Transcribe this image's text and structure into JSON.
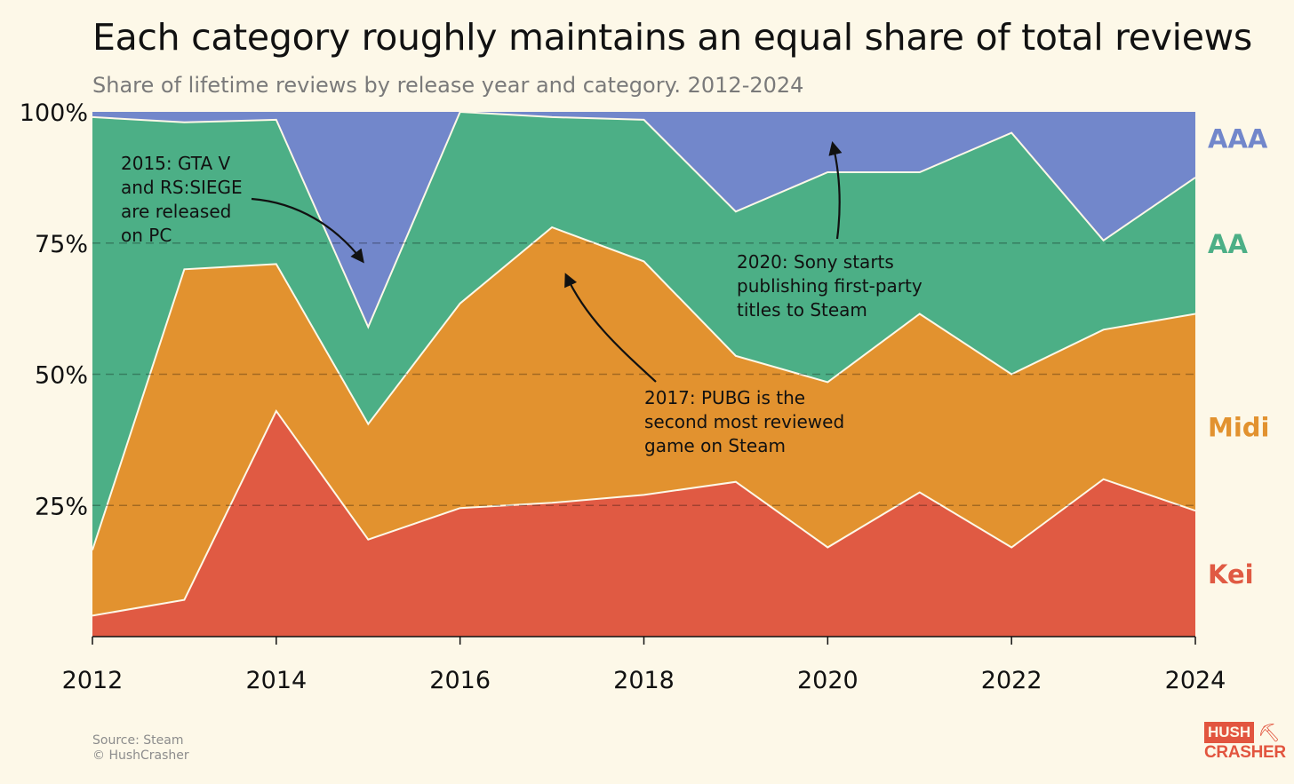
{
  "header": {
    "title": "Each category roughly maintains an equal share of total reviews",
    "subtitle": "Share of lifetime reviews by release year and category. 2012-2024"
  },
  "footer": {
    "source": "Source: Steam",
    "copyright": "© HushCrasher"
  },
  "logo": {
    "line1": "HUSH",
    "line2": "CRASHER",
    "icon": "pickaxe-icon"
  },
  "chart_data": {
    "type": "area",
    "stacked": true,
    "x": [
      2012,
      2013,
      2014,
      2015,
      2016,
      2017,
      2018,
      2019,
      2020,
      2021,
      2022,
      2023,
      2024
    ],
    "x_ticks": [
      "2012",
      "2014",
      "2016",
      "2018",
      "2020",
      "2022",
      "2024"
    ],
    "y_ticks": [
      {
        "value": 25,
        "label": "25%"
      },
      {
        "value": 50,
        "label": "50%"
      },
      {
        "value": 75,
        "label": "75%"
      },
      {
        "value": 100,
        "label": "100%"
      }
    ],
    "ylim": [
      0,
      100
    ],
    "grid": "dashed lines at 25%, 50%, 75%",
    "series": [
      {
        "name": "Kei",
        "color": "#e05a43",
        "values": [
          4,
          7,
          43,
          18.5,
          24.5,
          25.5,
          27,
          29.5,
          17,
          27.5,
          17,
          30,
          24
        ]
      },
      {
        "name": "Midi",
        "color": "#e2922f",
        "values": [
          12.5,
          63,
          28,
          22,
          39,
          52.5,
          44.5,
          24,
          31.5,
          34,
          33,
          28.5,
          37.5
        ]
      },
      {
        "name": "AA",
        "color": "#4caf86",
        "values": [
          82.5,
          28,
          27.5,
          18.5,
          36.5,
          21,
          27,
          27.5,
          40,
          27,
          46,
          17,
          26
        ]
      },
      {
        "name": "AAA",
        "color": "#7287cb",
        "values": [
          1,
          2,
          1.5,
          41,
          0,
          1,
          1.5,
          19,
          11.5,
          11.5,
          4,
          24.5,
          12.5
        ]
      }
    ],
    "annotations": [
      {
        "text": [
          "2015: GTA V",
          "and RS:SIEGE",
          "are released",
          "on PC"
        ],
        "x": 2015
      },
      {
        "text": [
          "2017: PUBG is the",
          "second most reviewed",
          "game on Steam"
        ],
        "x": 2017
      },
      {
        "text": [
          "2020: Sony starts",
          "publishing first-party",
          "titles to Steam"
        ],
        "x": 2020
      }
    ]
  }
}
